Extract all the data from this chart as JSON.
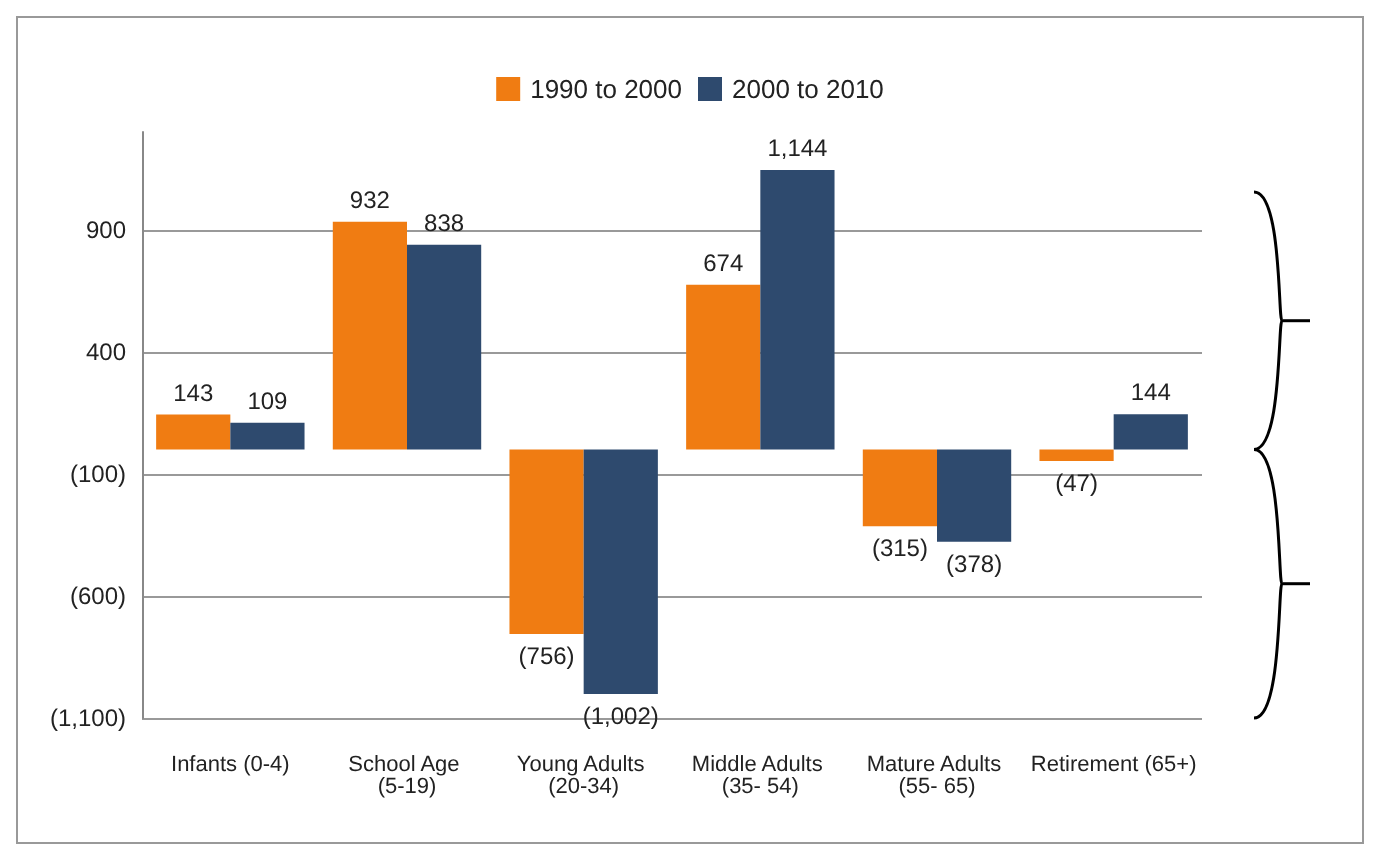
{
  "chart_data": {
    "type": "bar",
    "categories": [
      "Infants (0-4)",
      "School Age (5-19)",
      "Young Adults (20-34)",
      "Middle Adults (35- 54)",
      "Mature Adults (55- 65)",
      "Retirement (65+)"
    ],
    "series": [
      {
        "name": "1990 to 2000",
        "color": "#f07c12",
        "values": [
          143,
          932,
          -756,
          674,
          -315,
          -47
        ],
        "value_labels": [
          "143",
          "932",
          "(756)",
          "674",
          "(315)",
          "(47)"
        ]
      },
      {
        "name": "2000 to 2010",
        "color": "#2e4a6e",
        "values": [
          109,
          838,
          -1002,
          1144,
          -378,
          144
        ],
        "value_labels": [
          "109",
          "838",
          "(1,002)",
          "1,144",
          "(378)",
          "144"
        ]
      }
    ],
    "ylim": [
      -1100,
      1300
    ],
    "yticks": [
      {
        "value": -1100,
        "label": "(1,100)"
      },
      {
        "value": -600,
        "label": "(600)"
      },
      {
        "value": -100,
        "label": "(100)"
      },
      400,
      900
    ],
    "grid": "y",
    "legend": "top"
  }
}
